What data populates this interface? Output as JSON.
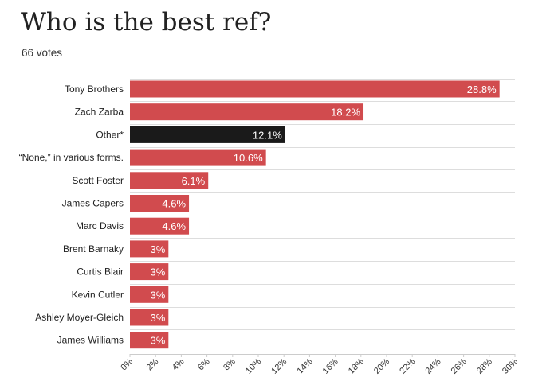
{
  "chart_data": {
    "type": "bar",
    "orientation": "horizontal",
    "title": "Who is the best ref?",
    "subtitle": "66 votes",
    "categories": [
      "Tony Brothers",
      "Zach Zarba",
      "Other*",
      "“None,” in various forms.",
      "Scott Foster",
      "James Capers",
      "Marc Davis",
      "Brent Barnaky",
      "Curtis Blair",
      "Kevin Cutler",
      "Ashley Moyer-Gleich",
      "James Williams"
    ],
    "values": [
      28.8,
      18.2,
      12.1,
      10.6,
      6.1,
      4.6,
      4.6,
      3,
      3,
      3,
      3,
      3
    ],
    "value_labels": [
      "28.8%",
      "18.2%",
      "12.1%",
      "10.6%",
      "6.1%",
      "4.6%",
      "4.6%",
      "3%",
      "3%",
      "3%",
      "3%",
      "3%"
    ],
    "xlim": [
      0,
      30
    ],
    "x_ticks": [
      0,
      2,
      4,
      6,
      8,
      10,
      12,
      14,
      16,
      18,
      20,
      22,
      24,
      26,
      28,
      30
    ],
    "x_tick_labels": [
      "0%",
      "2%",
      "4%",
      "6%",
      "8%",
      "10%",
      "12%",
      "14%",
      "16%",
      "18%",
      "20%",
      "22%",
      "24%",
      "26%",
      "28%",
      "30%"
    ],
    "grid": true,
    "colors": {
      "default": "#d14b4e",
      "highlight": "#1a1a1a",
      "grid": "#dddddd"
    },
    "highlight_category": "Other*"
  }
}
